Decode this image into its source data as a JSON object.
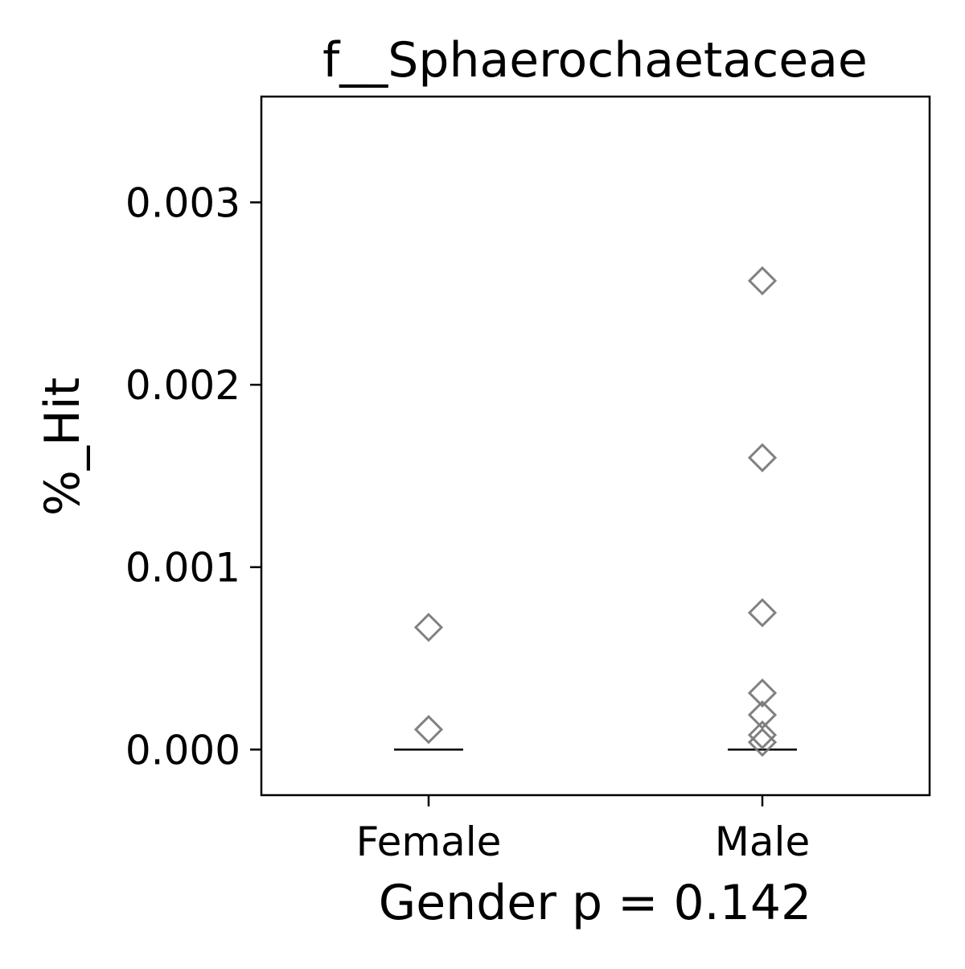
{
  "chart_data": {
    "type": "scatter",
    "title": "f__Sphaerochaetaceae",
    "xlabel": "Gender p = 0.142",
    "ylabel": "%_Hit",
    "categories": [
      "Female",
      "Male"
    ],
    "ylim": [
      -0.00025,
      0.00358
    ],
    "yticks": [
      0.0,
      0.001,
      0.002,
      0.003
    ],
    "ytick_labels": [
      "0.000",
      "0.001",
      "0.002",
      "0.003"
    ],
    "grid": false,
    "marker": "diamond-open",
    "marker_color": "#7a7a7a",
    "median_color": "#000000",
    "groups": [
      {
        "category": "Female",
        "values": [
          0.00067,
          0.00011
        ],
        "median": 0.0
      },
      {
        "category": "Male",
        "values": [
          0.00257,
          0.0016,
          0.00075,
          0.00031,
          0.00019,
          8e-05,
          4e-05
        ],
        "median": 0.0
      }
    ]
  }
}
